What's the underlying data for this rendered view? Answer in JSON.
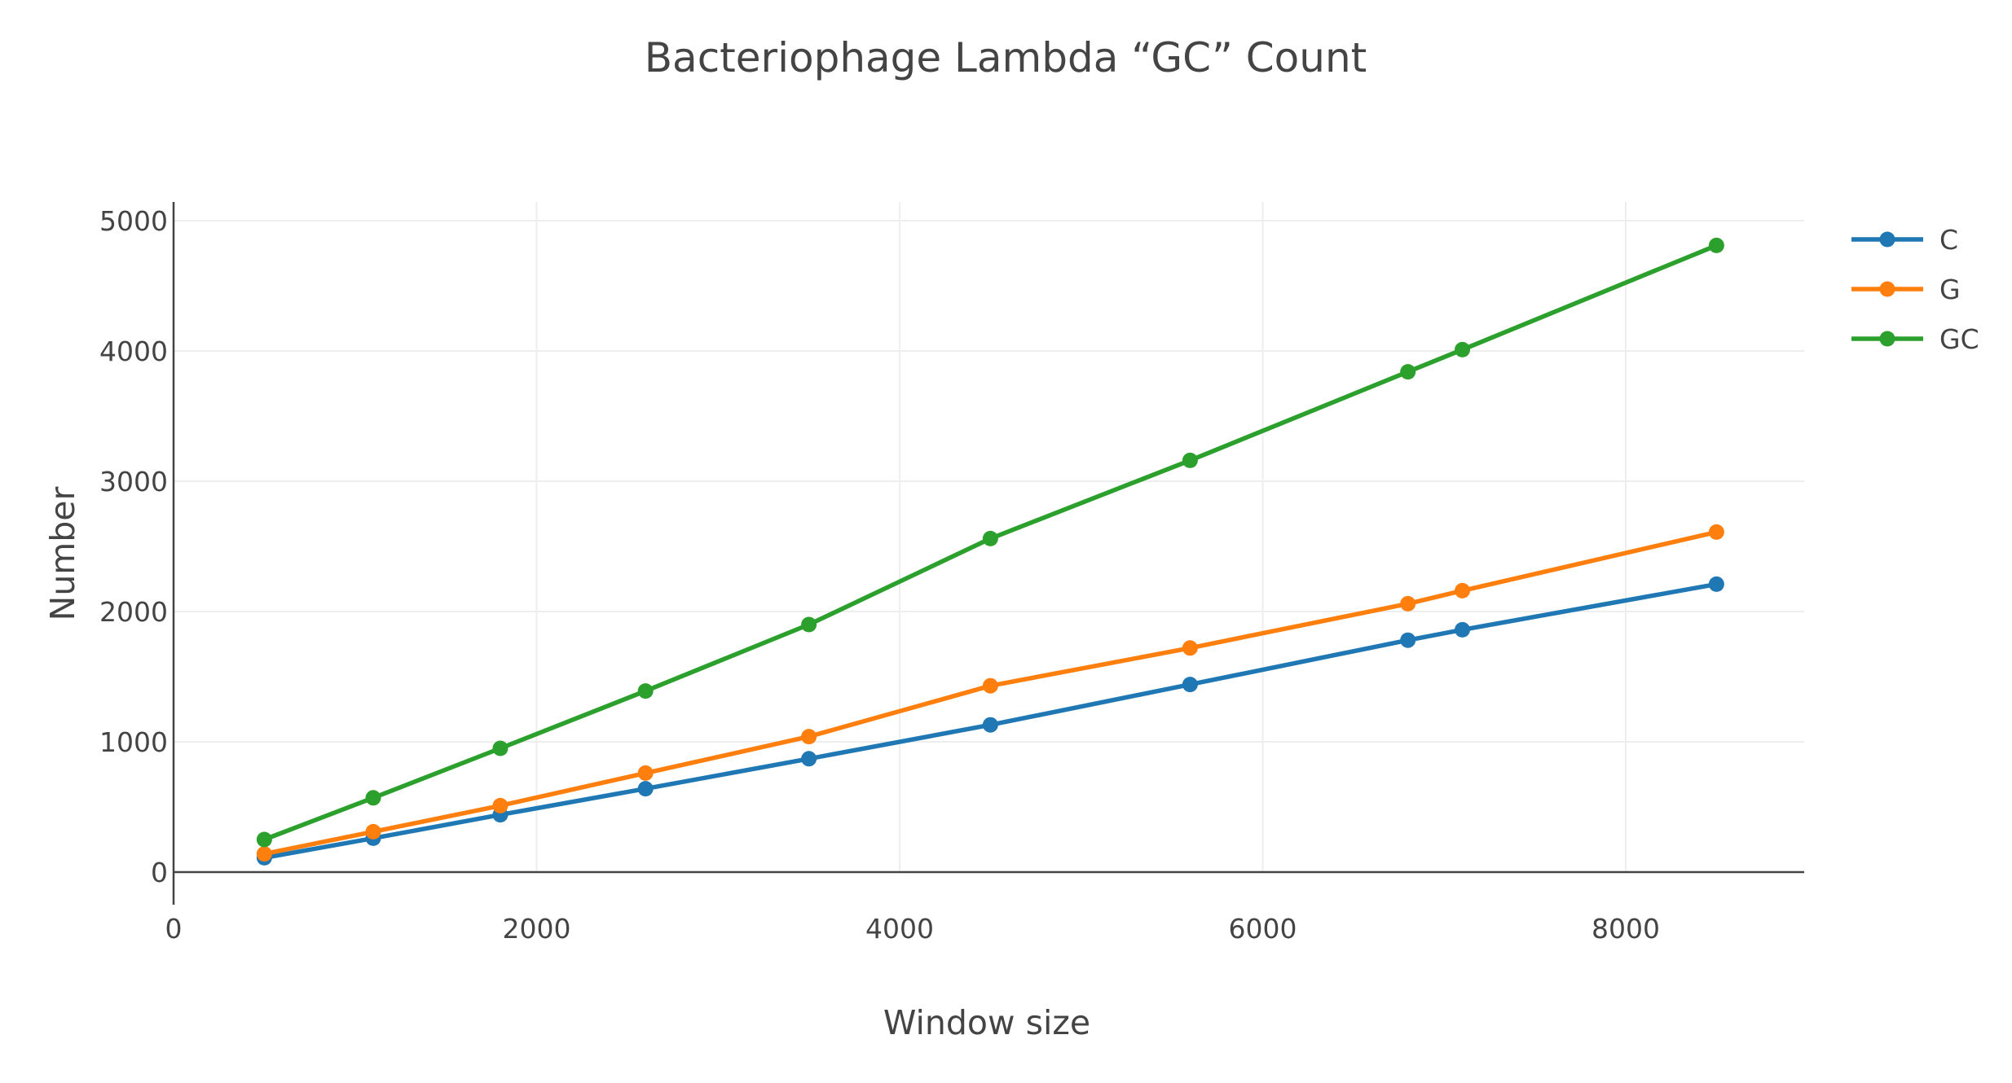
{
  "chart_data": {
    "type": "line",
    "title": "Bacteriophage Lambda “GC” Count",
    "xlabel": "Window size",
    "ylabel": "Number",
    "xlim": [
      0,
      9000
    ],
    "ylim": [
      0,
      5150
    ],
    "xticks": [
      0,
      2000,
      4000,
      6000,
      8000
    ],
    "yticks": [
      0,
      1000,
      2000,
      3000,
      4000,
      5000
    ],
    "grid": true,
    "legend_position": "top-right",
    "x": [
      500,
      1100,
      1800,
      2600,
      3500,
      4500,
      5600,
      6800,
      7100,
      8500
    ],
    "series": [
      {
        "name": "C",
        "color": "#1f77b4",
        "values": [
          110,
          260,
          440,
          640,
          870,
          1130,
          1440,
          1780,
          1860,
          2210
        ]
      },
      {
        "name": "G",
        "color": "#ff7f0e",
        "values": [
          140,
          310,
          510,
          760,
          1040,
          1430,
          1720,
          2060,
          2160,
          2610
        ]
      },
      {
        "name": "GC",
        "color": "#2ca02c",
        "values": [
          250,
          570,
          950,
          1390,
          1900,
          2560,
          3160,
          3840,
          4010,
          4810
        ]
      }
    ]
  }
}
